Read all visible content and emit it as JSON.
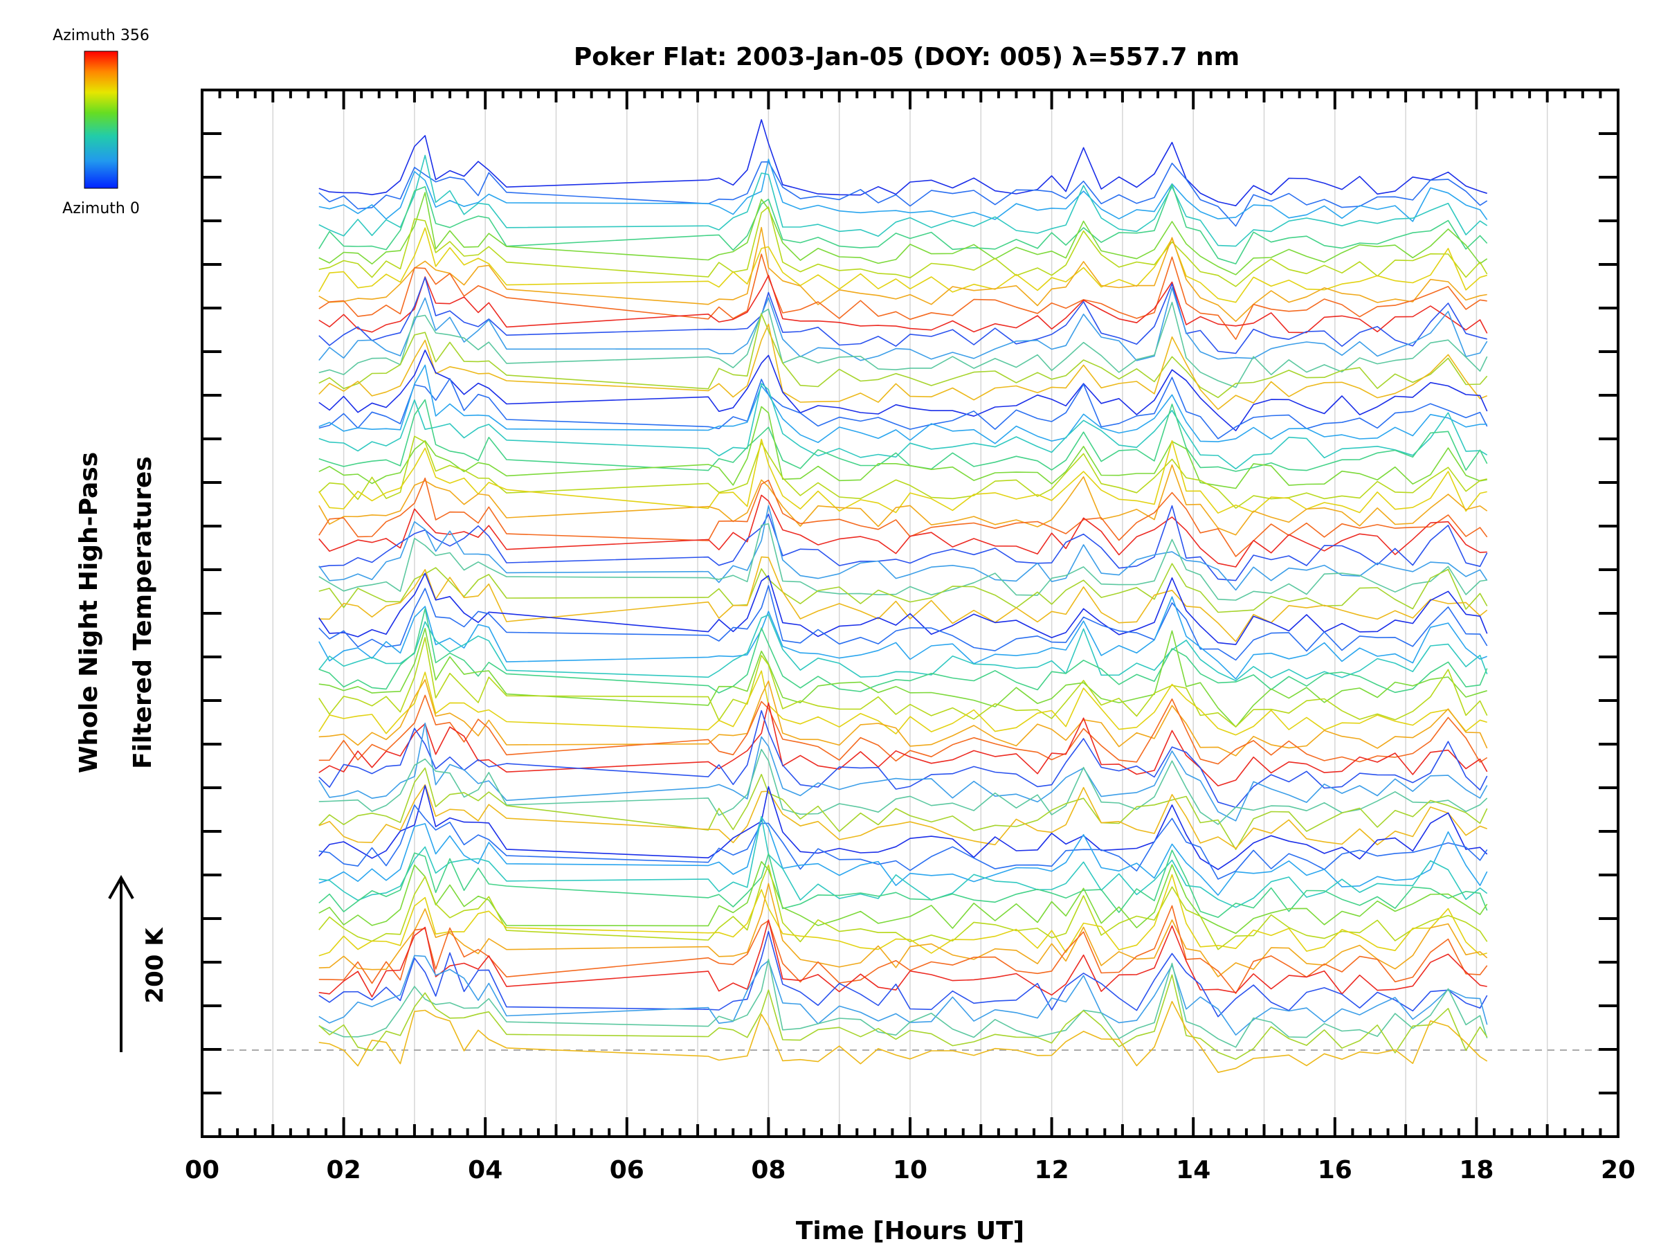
{
  "chart_data": {
    "type": "line",
    "title": "Poker Flat: 2003-Jan-05 (DOY: 005) λ=557.7 nm",
    "xlabel": "Time [Hours UT]",
    "ylabel_line1": "Whole Night High-Pass",
    "ylabel_line2": "Filtered Temperatures",
    "xlim": [
      0,
      20
    ],
    "x_major_ticks": [
      0,
      2,
      4,
      6,
      8,
      10,
      12,
      14,
      16,
      18,
      20
    ],
    "x_tick_labels": [
      "00",
      "02",
      "04",
      "06",
      "08",
      "10",
      "12",
      "14",
      "16",
      "18",
      "20"
    ],
    "x_grid_step": 1,
    "grid": "vertical",
    "scale_bar_label": "200 K",
    "colorbar": {
      "top_label": "Azimuth 356",
      "bottom_label": "Azimuth 0",
      "colors": [
        "#ff0000",
        "#ff8800",
        "#e6e600",
        "#66dd22",
        "#22ccaa",
        "#2299ee",
        "#0022ff"
      ]
    },
    "series_count": 64,
    "series_colors": [
      "#1a2ee8",
      "#2a6ff0",
      "#2aa5ee",
      "#30c8c0",
      "#44d288",
      "#7cd93a",
      "#b8d81c",
      "#e2d212",
      "#f0a81a",
      "#f46a20",
      "#ec2a22",
      "#2a52ee",
      "#3c9ee8",
      "#5cc8a0",
      "#a6d42c",
      "#ecb81a"
    ],
    "x_knots": [
      1.65,
      1.8,
      2.0,
      2.2,
      2.4,
      2.6,
      2.8,
      3.0,
      3.15,
      3.3,
      3.5,
      3.7,
      3.9,
      4.05,
      4.3,
      7.15,
      7.3,
      7.5,
      7.7,
      7.9,
      8.0,
      8.2,
      8.45,
      8.7,
      9.0,
      9.3,
      9.55,
      9.8,
      10.0,
      10.3,
      10.6,
      10.9,
      11.2,
      11.5,
      11.8,
      12.0,
      12.2,
      12.45,
      12.7,
      12.95,
      13.2,
      13.45,
      13.7,
      13.9,
      14.1,
      14.35,
      14.6,
      14.85,
      15.1,
      15.35,
      15.6,
      15.85,
      16.1,
      16.35,
      16.6,
      16.85,
      17.1,
      17.35,
      17.6,
      17.85,
      18.05,
      18.15
    ],
    "event_bumps": [
      [
        3.1,
        1.0
      ],
      [
        3.55,
        0.55
      ],
      [
        4.0,
        0.45
      ],
      [
        7.95,
        1.0
      ],
      [
        12.45,
        0.55
      ],
      [
        13.7,
        0.9
      ],
      [
        14.5,
        -0.45
      ],
      [
        17.5,
        0.6
      ]
    ],
    "values_note_omitted": true
  }
}
